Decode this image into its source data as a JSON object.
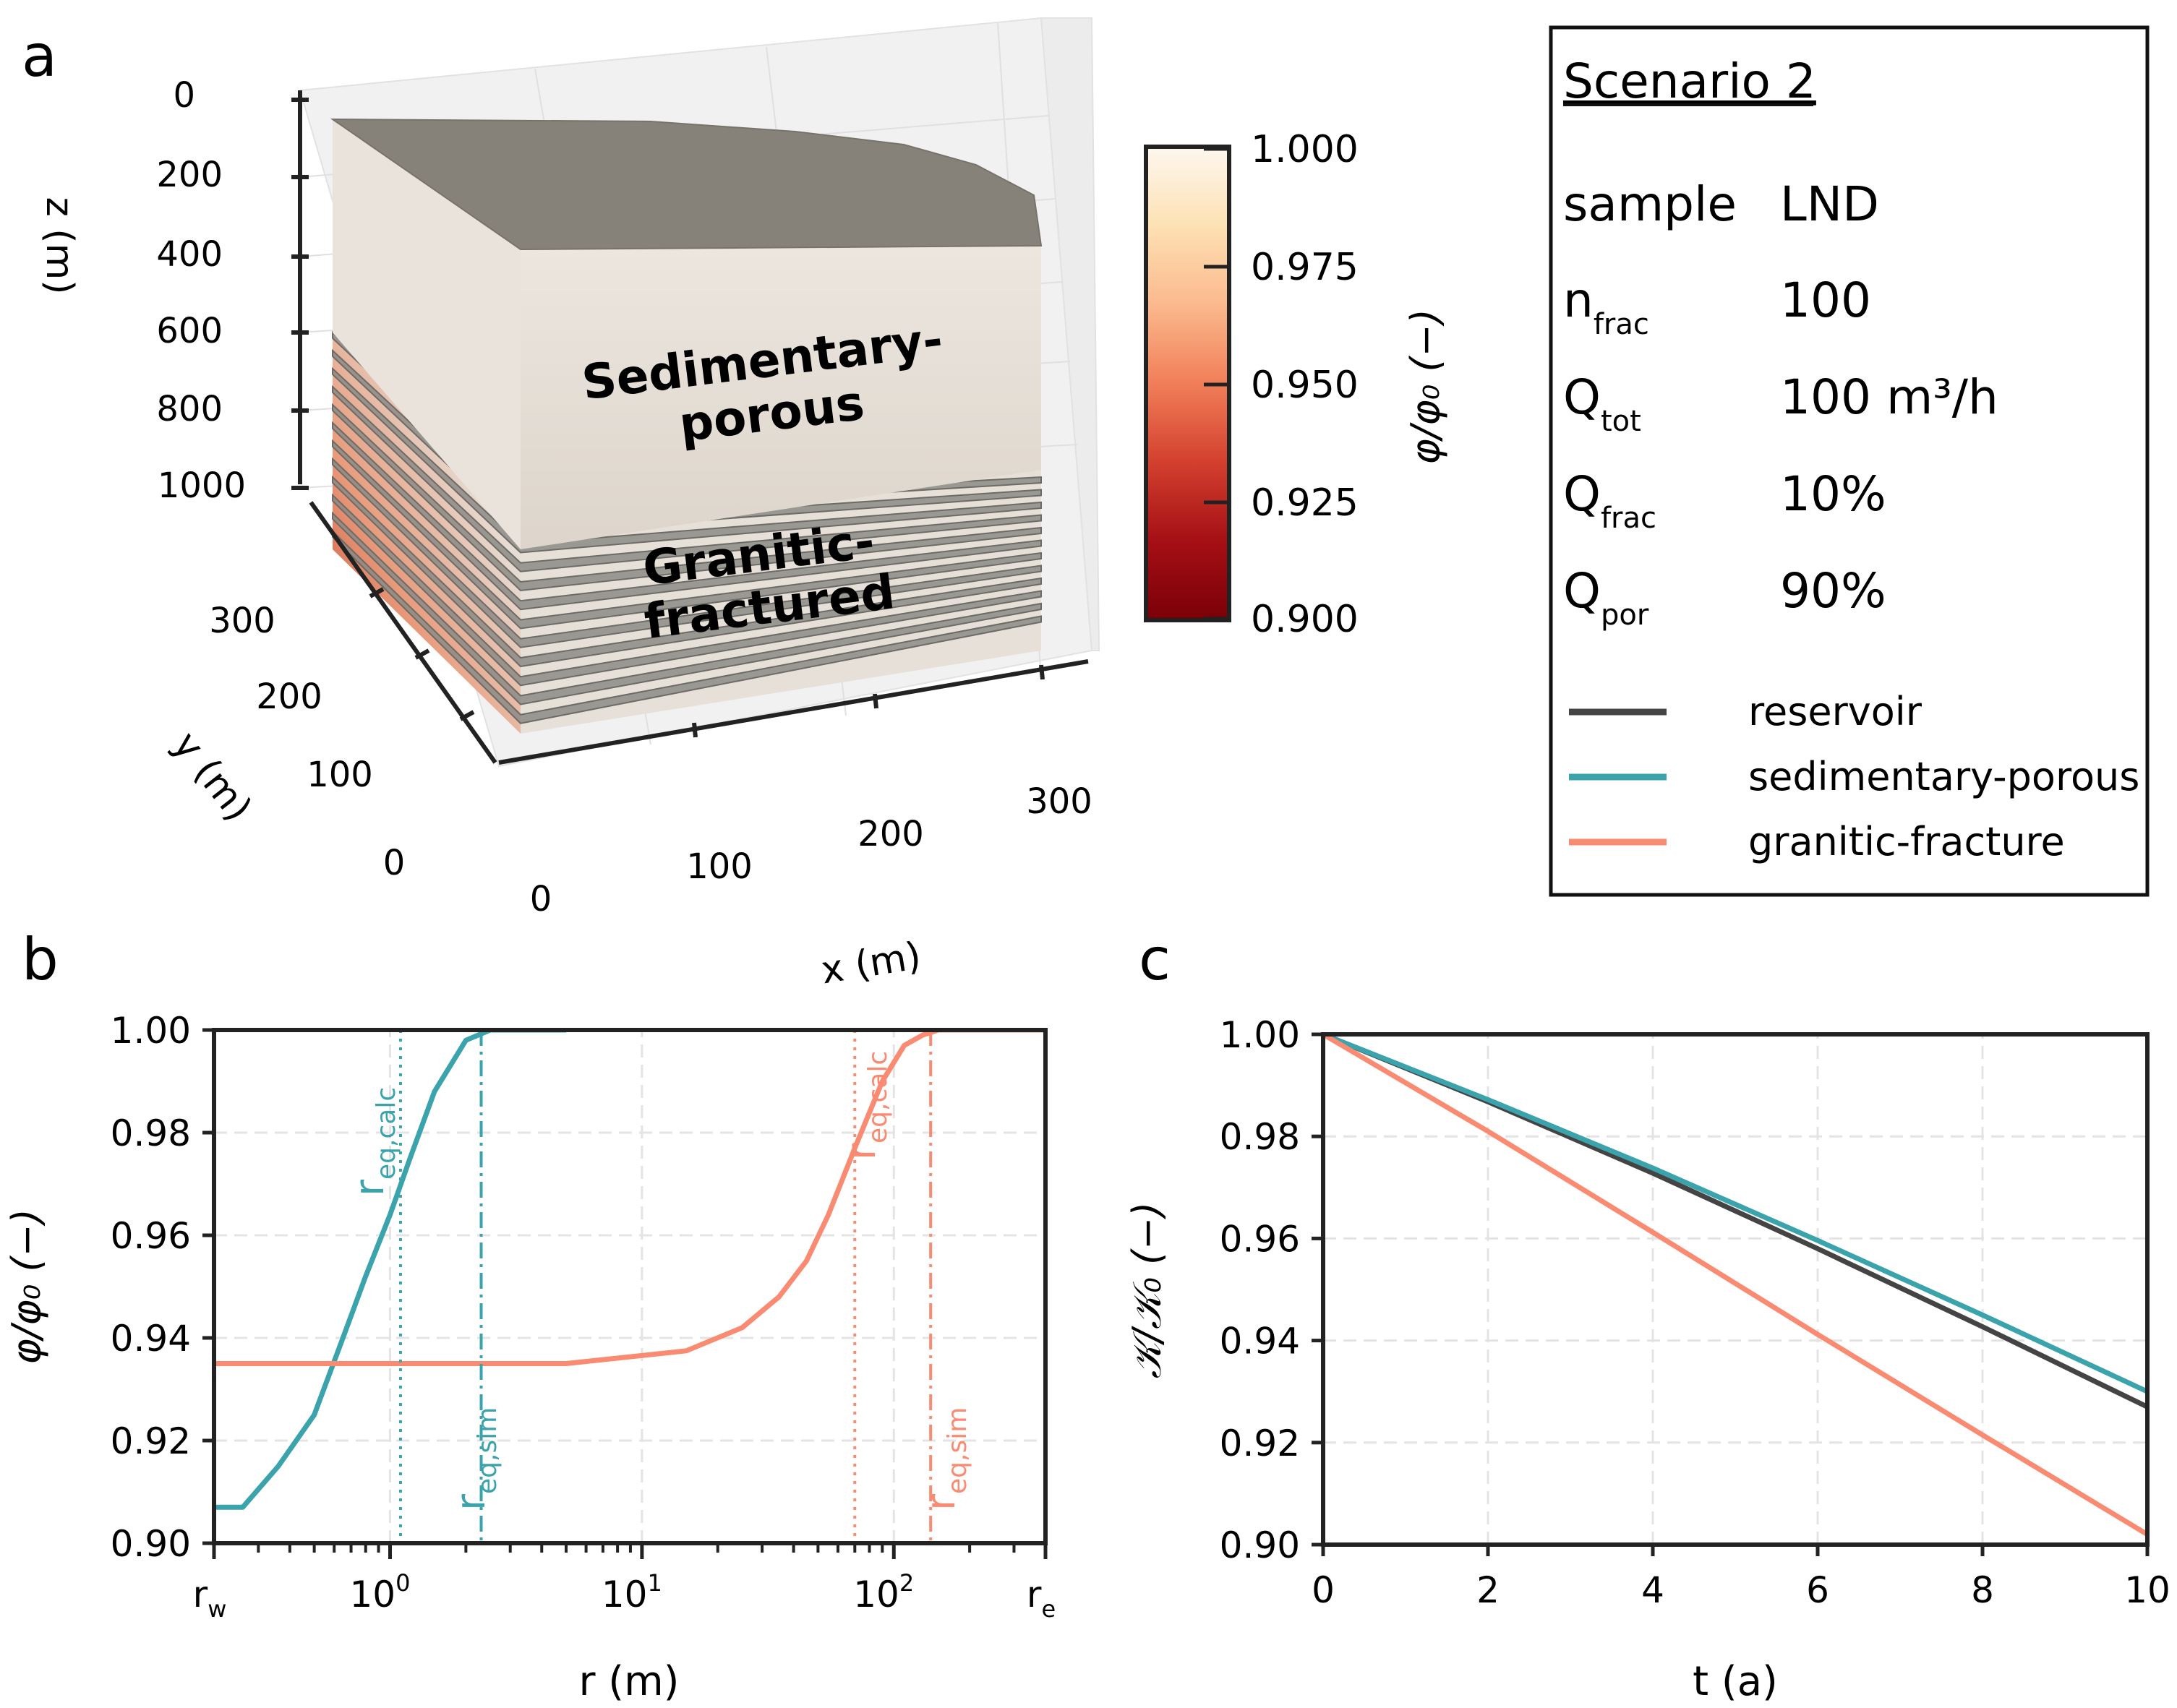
{
  "panel_labels": {
    "a": "a",
    "b": "b",
    "c": "c"
  },
  "panel_a": {
    "axis_z": {
      "label": "z (m)",
      "ticks": [
        "0",
        "200",
        "400",
        "600",
        "800",
        "1000"
      ]
    },
    "axis_y": {
      "label": "y (m)",
      "ticks": [
        "0",
        "100",
        "200",
        "300"
      ]
    },
    "axis_x": {
      "label": "x (m)",
      "ticks": [
        "0",
        "100",
        "200",
        "300"
      ]
    },
    "layer_sedimentary": {
      "line1": "Sedimentary-",
      "line2": "porous"
    },
    "layer_granitic": {
      "line1": "Granitic-",
      "line2": "fractured"
    },
    "colorbar": {
      "label": "φ/φ₀ (−)",
      "ticks": [
        "1.000",
        "0.975",
        "0.950",
        "0.925",
        "0.900"
      ],
      "stops": [
        "#fdf7ef",
        "#fde1b4",
        "#fbb98d",
        "#f17e59",
        "#d3402e",
        "#a50f15",
        "#7a0007"
      ]
    }
  },
  "legend": {
    "title": "Scenario 2",
    "params": [
      {
        "name": "sample",
        "sub": "",
        "value": "LND"
      },
      {
        "name": "n",
        "sub": "frac",
        "value": "100"
      },
      {
        "name": "Q",
        "sub": "tot",
        "value": "100 m³/h"
      },
      {
        "name": "Q",
        "sub": "frac",
        "value": "10%"
      },
      {
        "name": "Q",
        "sub": "por",
        "value": "90%"
      }
    ],
    "series": [
      {
        "label": "reservoir",
        "color": "#444444"
      },
      {
        "label": "sedimentary-porous",
        "color": "#3aa3ab"
      },
      {
        "label": "granitic-fracture",
        "color": "#f98b72"
      }
    ]
  },
  "chart_data": [
    {
      "id": "b",
      "type": "line",
      "xscale": "log",
      "xlabel": "r (m)",
      "ylabel": "φ/φ₀ (−)",
      "xlim": [
        0.2,
        400
      ],
      "ylim": [
        0.9,
        1.0
      ],
      "yticks": [
        "0.90",
        "0.92",
        "0.94",
        "0.96",
        "0.98",
        "1.00"
      ],
      "xticks_major": [
        {
          "value": 1,
          "base": "10",
          "exp": "0"
        },
        {
          "value": 10,
          "base": "10",
          "exp": "1"
        },
        {
          "value": 100,
          "base": "10",
          "exp": "2"
        }
      ],
      "xtick_rw": {
        "value": 0.2,
        "base": "r",
        "sub": "w"
      },
      "xtick_re": {
        "value": 400,
        "base": "r",
        "sub": "e"
      },
      "series": [
        {
          "name": "sedimentary-porous",
          "color": "#3aa3ab",
          "x": [
            0.2,
            0.26,
            0.36,
            0.5,
            0.65,
            0.8,
            1.0,
            1.2,
            1.5,
            2.0,
            2.5,
            3.0,
            3.5,
            5
          ],
          "y": [
            0.907,
            0.907,
            0.915,
            0.925,
            0.94,
            0.952,
            0.964,
            0.975,
            0.988,
            0.998,
            1.0,
            1.0,
            1.0,
            1.0
          ]
        },
        {
          "name": "granitic-fracture",
          "color": "#f98b72",
          "x": [
            0.2,
            1,
            5,
            15,
            25,
            35,
            45,
            55,
            70,
            90,
            110,
            130,
            150,
            200,
            400
          ],
          "y": [
            0.935,
            0.935,
            0.935,
            0.9375,
            0.942,
            0.948,
            0.955,
            0.964,
            0.977,
            0.99,
            0.997,
            0.999,
            1.0,
            1.0,
            1.0
          ]
        }
      ],
      "vlines": [
        {
          "name": "r_eq_calc_sedimentary",
          "x": 1.1,
          "style": "dotted",
          "color": "#3aa3ab",
          "label": "r",
          "sub": "eq,calc"
        },
        {
          "name": "r_eq_sim_sedimentary",
          "x": 2.3,
          "style": "dashdot",
          "color": "#3aa3ab",
          "label": "r",
          "sub": "eq,sim"
        },
        {
          "name": "r_eq_calc_granitic",
          "x": 70,
          "style": "dotted",
          "color": "#f98b72",
          "label": "r",
          "sub": "eq,calc"
        },
        {
          "name": "r_eq_sim_granitic",
          "x": 140,
          "style": "dashdot",
          "color": "#f98b72",
          "label": "r",
          "sub": "eq,sim"
        }
      ]
    },
    {
      "id": "c",
      "type": "line",
      "xlabel": "t (a)",
      "ylabel": "𝒦/𝒦₀ (−)",
      "xlim": [
        0,
        10
      ],
      "ylim": [
        0.9,
        1.0
      ],
      "xticks": [
        "0",
        "2",
        "4",
        "6",
        "8",
        "10"
      ],
      "yticks": [
        "0.90",
        "0.92",
        "0.94",
        "0.96",
        "0.98",
        "1.00"
      ],
      "series": [
        {
          "name": "reservoir",
          "color": "#444444",
          "x": [
            0,
            2,
            4,
            6,
            8,
            10
          ],
          "y": [
            1.0,
            0.9868,
            0.9728,
            0.958,
            0.9427,
            0.927
          ]
        },
        {
          "name": "sedimentary-porous",
          "color": "#3aa3ab",
          "x": [
            0,
            2,
            4,
            6,
            8,
            10
          ],
          "y": [
            1.0,
            0.9872,
            0.9738,
            0.9596,
            0.945,
            0.93
          ]
        },
        {
          "name": "granitic-fracture",
          "color": "#f98b72",
          "x": [
            0,
            2,
            4,
            6,
            8,
            10
          ],
          "y": [
            1.0,
            0.981,
            0.9612,
            0.9412,
            0.9215,
            0.902
          ]
        }
      ]
    }
  ]
}
